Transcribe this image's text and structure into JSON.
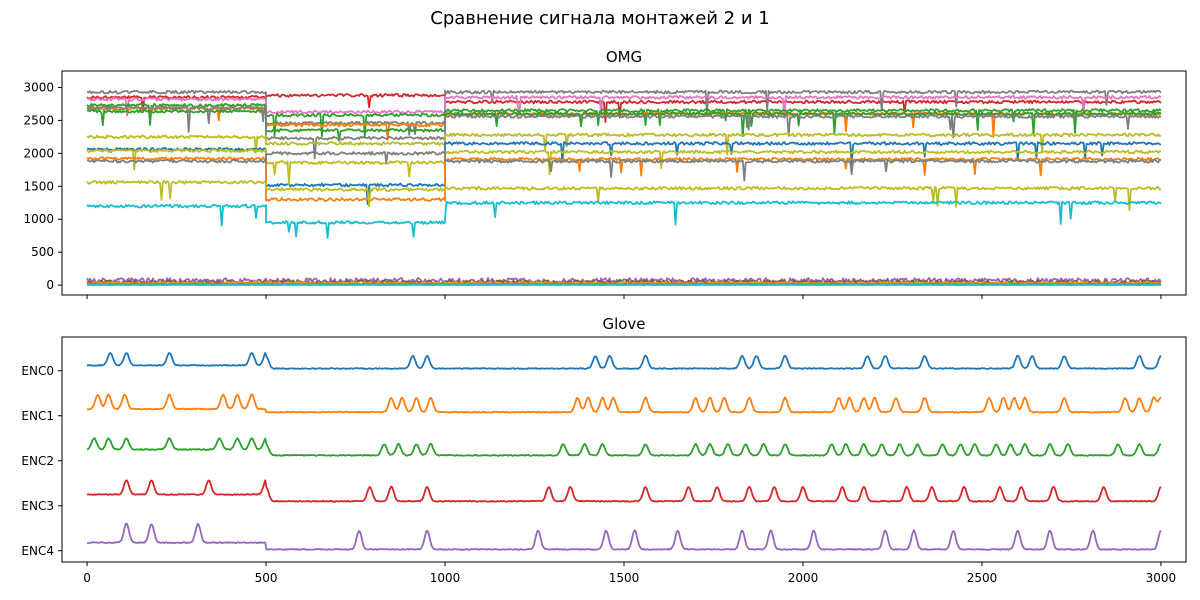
{
  "figure": {
    "title": "Сравнение сигнала монтажей 2 и 1"
  },
  "chart_data": [
    {
      "type": "line",
      "title": "OMG",
      "xlim": [
        -70,
        3070
      ],
      "ylim": [
        -150,
        3250
      ],
      "xticks": [
        0,
        500,
        1000,
        1500,
        2000,
        2500,
        3000
      ],
      "yticks": [
        0,
        500,
        1000,
        1500,
        2000,
        2500,
        3000
      ],
      "xtick_labels_visible": false,
      "grid": false,
      "series": [
        {
          "color": "#d62728",
          "segments": [
            [
              0,
              500,
              2850
            ],
            [
              500,
              1000,
              2880
            ],
            [
              1000,
              3000,
              2780
            ]
          ]
        },
        {
          "color": "#7f7f7f",
          "segments": [
            [
              0,
              500,
              2930
            ],
            [
              500,
              1000,
              2460
            ],
            [
              1000,
              3000,
              2930
            ]
          ]
        },
        {
          "color": "#e377c2",
          "segments": [
            [
              0,
              500,
              2820
            ],
            [
              500,
              1000,
              2630
            ],
            [
              1000,
              3000,
              2850
            ]
          ]
        },
        {
          "color": "#2ca02c",
          "segments": [
            [
              0,
              500,
              2730
            ],
            [
              500,
              1000,
              2580
            ],
            [
              1000,
              3000,
              2650
            ]
          ]
        },
        {
          "color": "#ff7f0e",
          "segments": [
            [
              0,
              500,
              2680
            ],
            [
              500,
              1000,
              2430
            ],
            [
              1000,
              3000,
              2600
            ]
          ]
        },
        {
          "color": "#2ca02c",
          "segments": [
            [
              0,
              500,
              2640
            ],
            [
              500,
              1000,
              2350
            ],
            [
              1000,
              3000,
              2600
            ]
          ]
        },
        {
          "color": "#7f7f7f",
          "segments": [
            [
              0,
              500,
              2690
            ],
            [
              500,
              1000,
              2230
            ],
            [
              1000,
              3000,
              2560
            ]
          ]
        },
        {
          "color": "#bcbd22",
          "segments": [
            [
              0,
              500,
              2250
            ],
            [
              500,
              1000,
              2150
            ],
            [
              1000,
              3000,
              2280
            ]
          ]
        },
        {
          "color": "#1f77b4",
          "segments": [
            [
              0,
              500,
              2060
            ],
            [
              500,
              1000,
              1520
            ],
            [
              1000,
              3000,
              2150
            ]
          ]
        },
        {
          "color": "#bcbd22",
          "segments": [
            [
              0,
              500,
              2040
            ],
            [
              500,
              1000,
              1860
            ],
            [
              1000,
              3000,
              2020
            ]
          ]
        },
        {
          "color": "#ff7f0e",
          "segments": [
            [
              0,
              500,
              1920
            ],
            [
              500,
              1000,
              1300
            ],
            [
              1000,
              3000,
              1910
            ]
          ]
        },
        {
          "color": "#7f7f7f",
          "segments": [
            [
              0,
              500,
              1880
            ],
            [
              500,
              1000,
              2000
            ],
            [
              1000,
              3000,
              1880
            ]
          ]
        },
        {
          "color": "#bcbd22",
          "segments": [
            [
              0,
              500,
              1560
            ],
            [
              500,
              1000,
              1450
            ],
            [
              1000,
              3000,
              1470
            ]
          ]
        },
        {
          "color": "#17becf",
          "segments": [
            [
              0,
              500,
              1200
            ],
            [
              500,
              1000,
              950
            ],
            [
              1000,
              3000,
              1250
            ]
          ]
        },
        {
          "color": "#9467bd",
          "segments": [
            [
              0,
              3000,
              90
            ]
          ]
        },
        {
          "color": "#8c564b",
          "segments": [
            [
              0,
              3000,
              60
            ]
          ]
        },
        {
          "color": "#bcbd22",
          "segments": [
            [
              0,
              3000,
              40
            ]
          ]
        },
        {
          "color": "#1f77b4",
          "segments": [
            [
              0,
              3000,
              20
            ]
          ]
        },
        {
          "color": "#ff7f0e",
          "segments": [
            [
              0,
              3000,
              30
            ]
          ]
        },
        {
          "color": "#2ca02c",
          "segments": [
            [
              0,
              3000,
              10
            ]
          ]
        },
        {
          "color": "#17becf",
          "segments": [
            [
              0,
              3000,
              5
            ]
          ]
        }
      ]
    },
    {
      "type": "line",
      "title": "Glove",
      "xlim": [
        -70,
        3070
      ],
      "ylim": [
        -4.25,
        0.75
      ],
      "xticks": [
        0,
        500,
        1000,
        1500,
        2000,
        2500,
        3000
      ],
      "xtick_labels": [
        "0",
        "500",
        "1000",
        "1500",
        "2000",
        "2500",
        "3000"
      ],
      "yticks": [
        0,
        -1,
        -2,
        -3,
        -4
      ],
      "ytick_labels": [
        "ENC0",
        "ENC1",
        "ENC2",
        "ENC3",
        "ENC4"
      ],
      "grid": false,
      "series": [
        {
          "name": "ENC0",
          "color": "#1f77b4",
          "offset": 0,
          "baseline": [
            [
              0,
              500,
              0.12
            ],
            [
              500,
              3000,
              0.05
            ]
          ],
          "amp": 0.28,
          "peaks": [
            65,
            110,
            230,
            460,
            500,
            910,
            950,
            1420,
            1460,
            1560,
            1830,
            1870,
            1950,
            2180,
            2230,
            2340,
            2600,
            2640,
            2730,
            2940,
            3000
          ]
        },
        {
          "name": "ENC1",
          "color": "#ff7f0e",
          "offset": -1,
          "baseline": [
            [
              0,
              500,
              0.15
            ],
            [
              500,
              3000,
              0.08
            ]
          ],
          "amp": 0.32,
          "peaks": [
            30,
            60,
            105,
            230,
            380,
            420,
            460,
            850,
            880,
            920,
            960,
            1370,
            1400,
            1440,
            1470,
            1560,
            1700,
            1740,
            1780,
            1850,
            1950,
            2100,
            2130,
            2170,
            2200,
            2260,
            2340,
            2520,
            2560,
            2590,
            2620,
            2730,
            2900,
            2940,
            2980,
            3000
          ]
        },
        {
          "name": "ENC2",
          "color": "#2ca02c",
          "offset": -2,
          "baseline": [
            [
              0,
              500,
              0.25
            ],
            [
              500,
              3000,
              0.12
            ]
          ],
          "amp": 0.25,
          "peaks": [
            20,
            60,
            110,
            230,
            370,
            420,
            460,
            500,
            830,
            870,
            920,
            960,
            1330,
            1390,
            1440,
            1560,
            1700,
            1740,
            1790,
            1840,
            1890,
            1950,
            2080,
            2120,
            2170,
            2220,
            2270,
            2320,
            2390,
            2440,
            2480,
            2540,
            2580,
            2620,
            2690,
            2740,
            2880,
            2940,
            3000
          ]
        },
        {
          "name": "ENC3",
          "color": "#d62728",
          "offset": -3,
          "baseline": [
            [
              0,
              500,
              0.25
            ],
            [
              500,
              3000,
              0.1
            ]
          ],
          "amp": 0.32,
          "peaks": [
            110,
            180,
            340,
            500,
            790,
            850,
            950,
            1290,
            1350,
            1560,
            1680,
            1760,
            1850,
            1920,
            2000,
            2110,
            2170,
            2290,
            2360,
            2450,
            2550,
            2610,
            2700,
            2840,
            3000
          ]
        },
        {
          "name": "ENC4",
          "color": "#9467bd",
          "offset": -4,
          "baseline": [
            [
              0,
              500,
              0.18
            ],
            [
              500,
              3000,
              0.03
            ]
          ],
          "amp": 0.42,
          "peaks": [
            110,
            180,
            310,
            760,
            950,
            1260,
            1450,
            1530,
            1650,
            1830,
            1910,
            2030,
            2230,
            2310,
            2420,
            2600,
            2690,
            2810,
            3000
          ]
        }
      ]
    }
  ]
}
